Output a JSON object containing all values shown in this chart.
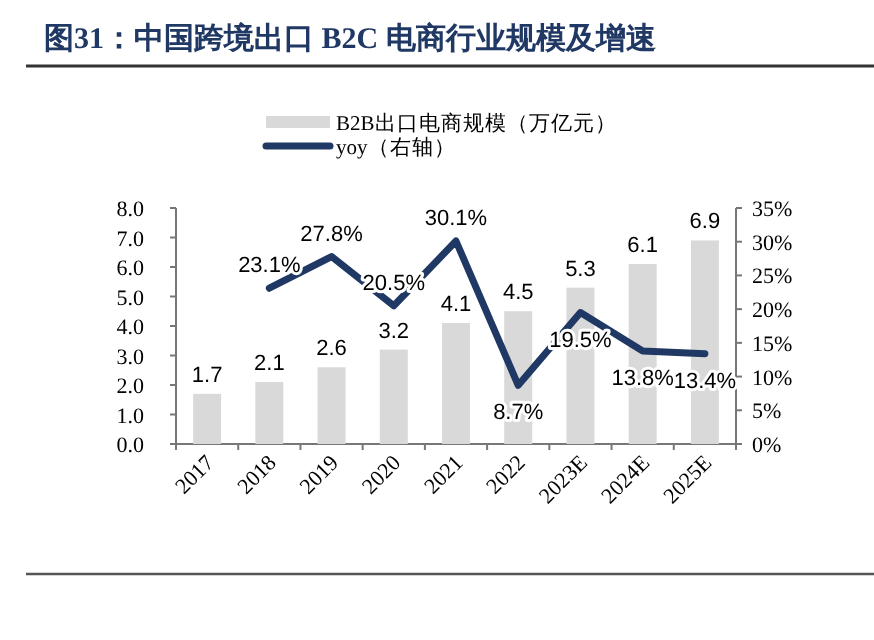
{
  "chart_data": {
    "type": "bar",
    "title": "图31：中国跨境出口 B2C 电商行业规模及增速",
    "categories": [
      "2017",
      "2018",
      "2019",
      "2020",
      "2021",
      "2022",
      "2023E",
      "2024E",
      "2025E"
    ],
    "series": [
      {
        "name": "B2B出口电商规模（万亿元）",
        "color": "#d9d9d9",
        "values": [
          1.7,
          2.1,
          2.6,
          3.2,
          4.1,
          4.5,
          5.3,
          6.1,
          6.9
        ],
        "value_labels": [
          "1.7",
          "2.1",
          "2.6",
          "3.2",
          "4.1",
          "4.5",
          "5.3",
          "6.1",
          "6.9"
        ]
      },
      {
        "name": "yoy（右轴）",
        "type": "line",
        "axis": "y2",
        "color": "#203864",
        "values": [
          null,
          23.1,
          27.8,
          20.5,
          30.1,
          8.7,
          19.5,
          13.8,
          13.4
        ],
        "value_labels": [
          null,
          "23.1%",
          "27.8%",
          "20.5%",
          "30.1%",
          "8.7%",
          "19.5%",
          "13.8%",
          "13.4%"
        ]
      }
    ],
    "ylim": [
      0,
      8
    ],
    "yticks": [
      {
        "value": 0,
        "label": "0.0"
      },
      {
        "value": 1,
        "label": "1.0"
      },
      {
        "value": 2,
        "label": "2.0"
      },
      {
        "value": 3,
        "label": "3.0"
      },
      {
        "value": 4,
        "label": "4.0"
      },
      {
        "value": 5,
        "label": "5.0"
      },
      {
        "value": 6,
        "label": "6.0"
      },
      {
        "value": 7,
        "label": "7.0"
      },
      {
        "value": 8,
        "label": "8.0"
      }
    ],
    "y2lim": [
      0,
      35
    ],
    "y2ticks": [
      {
        "value": 0,
        "label": "0%"
      },
      {
        "value": 5,
        "label": "5%"
      },
      {
        "value": 10,
        "label": "10%"
      },
      {
        "value": 15,
        "label": "15%"
      },
      {
        "value": 20,
        "label": "20%"
      },
      {
        "value": 25,
        "label": "25%"
      },
      {
        "value": 30,
        "label": "30%"
      },
      {
        "value": 35,
        "label": "35%"
      }
    ],
    "legend": "top",
    "grid": false
  }
}
